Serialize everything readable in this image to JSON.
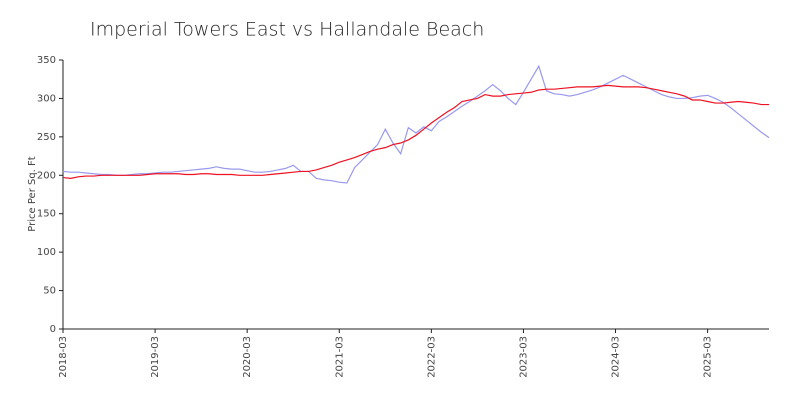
{
  "chart_data": {
    "type": "line",
    "title": "Imperial Towers East vs Hallandale Beach",
    "y_label": "Price Per Sq. Ft",
    "x": [
      "2018-03",
      "2018-04",
      "2018-05",
      "2018-06",
      "2018-07",
      "2018-08",
      "2018-09",
      "2018-10",
      "2018-11",
      "2018-12",
      "2019-01",
      "2019-02",
      "2019-03",
      "2019-04",
      "2019-05",
      "2019-06",
      "2019-07",
      "2019-08",
      "2019-09",
      "2019-10",
      "2019-11",
      "2019-12",
      "2020-01",
      "2020-02",
      "2020-03",
      "2020-04",
      "2020-05",
      "2020-06",
      "2020-07",
      "2020-08",
      "2020-09",
      "2020-10",
      "2020-11",
      "2020-12",
      "2021-01",
      "2021-02",
      "2021-03",
      "2021-04",
      "2021-05",
      "2021-06",
      "2021-07",
      "2021-08",
      "2021-09",
      "2021-10",
      "2021-11",
      "2021-12",
      "2022-01",
      "2022-02",
      "2022-03",
      "2022-04",
      "2022-05",
      "2022-06",
      "2022-07",
      "2022-08",
      "2022-09",
      "2022-10",
      "2022-11",
      "2022-12",
      "2023-01",
      "2023-02",
      "2023-03",
      "2023-04",
      "2023-05",
      "2023-06",
      "2023-07",
      "2023-08",
      "2023-09",
      "2023-10",
      "2023-11",
      "2023-12",
      "2024-01",
      "2024-02",
      "2024-03",
      "2024-04",
      "2024-05",
      "2024-06",
      "2024-07",
      "2024-08",
      "2024-09",
      "2024-10",
      "2024-11",
      "2024-12",
      "2025-01",
      "2025-02",
      "2025-03",
      "2025-04",
      "2025-05",
      "2025-06",
      "2025-07",
      "2025-08",
      "2025-09",
      "2025-10",
      "2025-11"
    ],
    "series": [
      {
        "color": "#9999ee",
        "values": [
          205,
          204,
          204,
          203,
          202,
          201,
          201,
          200,
          200,
          201,
          202,
          202,
          203,
          204,
          204,
          205,
          206,
          207,
          208,
          209,
          211,
          209,
          208,
          208,
          206,
          204,
          204,
          205,
          207,
          209,
          213,
          205,
          205,
          196,
          194,
          193,
          191,
          190,
          210,
          220,
          230,
          240,
          260,
          242,
          228,
          262,
          255,
          263,
          258,
          270,
          276,
          283,
          290,
          296,
          303,
          310,
          318,
          310,
          300,
          292,
          308,
          325,
          342,
          310,
          306,
          305,
          303,
          305,
          308,
          311,
          315,
          320,
          325,
          330,
          325,
          320,
          315,
          310,
          305,
          302,
          300,
          300,
          301,
          303,
          304,
          300,
          295,
          288,
          280,
          272,
          264,
          256,
          249
        ]
      },
      {
        "color": "#ee1122",
        "values": [
          197,
          196,
          198,
          199,
          199,
          200,
          200,
          200,
          200,
          200,
          200,
          201,
          202,
          202,
          202,
          202,
          201,
          201,
          202,
          202,
          201,
          201,
          201,
          200,
          200,
          200,
          200,
          201,
          202,
          203,
          204,
          205,
          205,
          207,
          210,
          213,
          217,
          220,
          223,
          227,
          231,
          234,
          236,
          240,
          242,
          246,
          252,
          260,
          268,
          275,
          282,
          288,
          296,
          298,
          300,
          305,
          303,
          303,
          305,
          306,
          307,
          308,
          311,
          312,
          312,
          313,
          314,
          315,
          315,
          315,
          316,
          317,
          316,
          315,
          315,
          315,
          314,
          312,
          310,
          308,
          306,
          303,
          298,
          298,
          296,
          294,
          294,
          295,
          296,
          295,
          294,
          292,
          292
        ]
      }
    ],
    "xlim": [
      "2018-03",
      "2025-11"
    ],
    "xticks": [
      "2018-03",
      "2019-03",
      "2020-03",
      "2021-03",
      "2022-03",
      "2023-03",
      "2024-03",
      "2025-03"
    ],
    "ylim": [
      0,
      350
    ],
    "yticks": [
      0,
      50,
      100,
      150,
      200,
      250,
      300,
      350
    ],
    "grid": false
  }
}
